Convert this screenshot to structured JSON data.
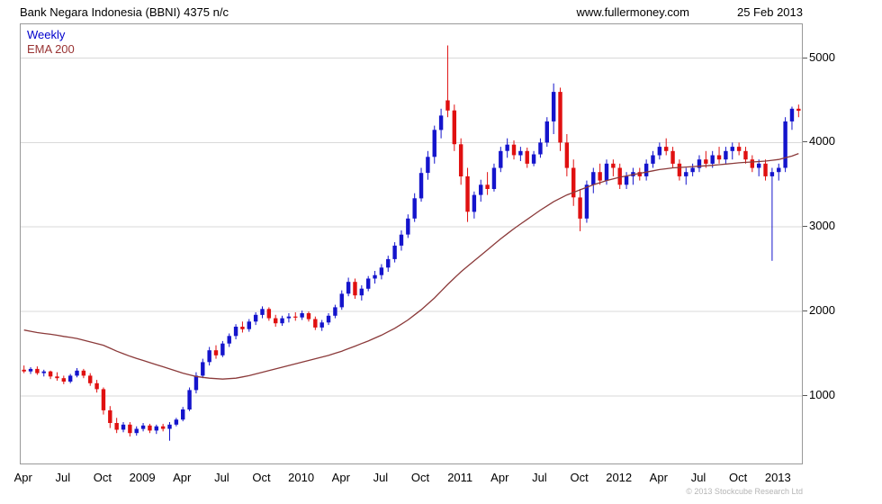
{
  "header": {
    "title": "Bank Negara Indonesia (BBNI) 4375 n/c",
    "site": "www.fullermoney.com",
    "date": "25 Feb 2013"
  },
  "legend": {
    "series1": "Weekly",
    "series2": "EMA 200"
  },
  "footer": {
    "copyright": "© 2013 Stockcube Research Ltd"
  },
  "colors": {
    "up": "#1414cc",
    "down": "#e01010",
    "ema_line": "#8b3a3a",
    "grid": "#d9d9d9",
    "legend_weekly": "#0000cc",
    "legend_ema": "#993333",
    "axis_text": "#000000",
    "tick": "#555555"
  },
  "chart_data": {
    "type": "candlestick",
    "subtype": "weekly-ohlc-approximated",
    "title": "Bank Negara Indonesia (BBNI)",
    "frequency": "Weekly",
    "overlay": "EMA 200",
    "last_price": 4375,
    "change": "n/c",
    "date_range": "Apr 2008 - Feb 2013",
    "ylim": [
      200,
      5400
    ],
    "yticks": [
      1000,
      2000,
      3000,
      4000,
      5000
    ],
    "grid": "horizontal-only",
    "legend_position": "top-left",
    "x_axis_labels": [
      {
        "label": "Apr",
        "index": 0
      },
      {
        "label": "Jul",
        "index": 6
      },
      {
        "label": "Oct",
        "index": 12
      },
      {
        "label": "2009",
        "index": 18
      },
      {
        "label": "Apr",
        "index": 24
      },
      {
        "label": "Jul",
        "index": 30
      },
      {
        "label": "Oct",
        "index": 36
      },
      {
        "label": "2010",
        "index": 42
      },
      {
        "label": "Apr",
        "index": 48
      },
      {
        "label": "Jul",
        "index": 54
      },
      {
        "label": "Oct",
        "index": 60
      },
      {
        "label": "2011",
        "index": 66
      },
      {
        "label": "Apr",
        "index": 72
      },
      {
        "label": "Jul",
        "index": 78
      },
      {
        "label": "Oct",
        "index": 84
      },
      {
        "label": "2012",
        "index": 90
      },
      {
        "label": "Apr",
        "index": 96
      },
      {
        "label": "Jul",
        "index": 102
      },
      {
        "label": "Oct",
        "index": 108
      },
      {
        "label": "2013",
        "index": 114
      }
    ],
    "candles": [
      [
        1310,
        1360,
        1270,
        1290
      ],
      [
        1290,
        1340,
        1260,
        1320
      ],
      [
        1320,
        1350,
        1250,
        1270
      ],
      [
        1270,
        1310,
        1230,
        1290
      ],
      [
        1290,
        1300,
        1200,
        1230
      ],
      [
        1230,
        1280,
        1180,
        1210
      ],
      [
        1210,
        1240,
        1140,
        1170
      ],
      [
        1170,
        1260,
        1150,
        1240
      ],
      [
        1240,
        1330,
        1220,
        1300
      ],
      [
        1300,
        1320,
        1210,
        1240
      ],
      [
        1240,
        1270,
        1120,
        1150
      ],
      [
        1150,
        1190,
        1040,
        1080
      ],
      [
        1080,
        1100,
        780,
        830
      ],
      [
        830,
        880,
        620,
        680
      ],
      [
        680,
        740,
        560,
        600
      ],
      [
        600,
        690,
        570,
        660
      ],
      [
        660,
        690,
        520,
        560
      ],
      [
        560,
        640,
        530,
        610
      ],
      [
        610,
        680,
        580,
        650
      ],
      [
        650,
        670,
        560,
        590
      ],
      [
        590,
        660,
        550,
        640
      ],
      [
        640,
        670,
        580,
        610
      ],
      [
        610,
        690,
        470,
        660
      ],
      [
        660,
        740,
        640,
        720
      ],
      [
        720,
        870,
        700,
        840
      ],
      [
        840,
        1100,
        820,
        1070
      ],
      [
        1070,
        1280,
        1030,
        1240
      ],
      [
        1240,
        1440,
        1210,
        1400
      ],
      [
        1400,
        1580,
        1360,
        1540
      ],
      [
        1540,
        1600,
        1440,
        1480
      ],
      [
        1480,
        1650,
        1460,
        1620
      ],
      [
        1620,
        1740,
        1580,
        1710
      ],
      [
        1710,
        1850,
        1670,
        1820
      ],
      [
        1820,
        1880,
        1750,
        1790
      ],
      [
        1790,
        1910,
        1760,
        1880
      ],
      [
        1880,
        1990,
        1840,
        1960
      ],
      [
        1960,
        2060,
        1920,
        2030
      ],
      [
        2030,
        2050,
        1890,
        1920
      ],
      [
        1920,
        1960,
        1820,
        1860
      ],
      [
        1860,
        1950,
        1830,
        1920
      ],
      [
        1920,
        1980,
        1870,
        1940
      ],
      [
        1940,
        1990,
        1890,
        1930
      ],
      [
        1930,
        2010,
        1900,
        1980
      ],
      [
        1980,
        2000,
        1880,
        1910
      ],
      [
        1910,
        1940,
        1780,
        1810
      ],
      [
        1810,
        1900,
        1770,
        1870
      ],
      [
        1870,
        1980,
        1840,
        1950
      ],
      [
        1950,
        2080,
        1920,
        2050
      ],
      [
        2050,
        2250,
        2020,
        2210
      ],
      [
        2210,
        2400,
        2180,
        2350
      ],
      [
        2350,
        2390,
        2150,
        2190
      ],
      [
        2190,
        2310,
        2130,
        2270
      ],
      [
        2270,
        2420,
        2240,
        2390
      ],
      [
        2390,
        2480,
        2330,
        2430
      ],
      [
        2430,
        2560,
        2380,
        2520
      ],
      [
        2520,
        2660,
        2470,
        2620
      ],
      [
        2620,
        2820,
        2580,
        2780
      ],
      [
        2780,
        2960,
        2720,
        2910
      ],
      [
        2910,
        3150,
        2870,
        3100
      ],
      [
        3100,
        3400,
        3060,
        3340
      ],
      [
        3340,
        3700,
        3300,
        3640
      ],
      [
        3640,
        3900,
        3560,
        3830
      ],
      [
        3830,
        4200,
        3750,
        4150
      ],
      [
        4150,
        4400,
        4050,
        4320
      ],
      [
        4500,
        5150,
        4300,
        4380
      ],
      [
        4380,
        4450,
        3900,
        3980
      ],
      [
        3980,
        4050,
        3500,
        3600
      ],
      [
        3600,
        3700,
        3060,
        3180
      ],
      [
        3180,
        3420,
        3100,
        3380
      ],
      [
        3380,
        3560,
        3300,
        3500
      ],
      [
        3500,
        3650,
        3380,
        3450
      ],
      [
        3450,
        3750,
        3420,
        3700
      ],
      [
        3700,
        3950,
        3650,
        3900
      ],
      [
        3900,
        4050,
        3820,
        3975
      ],
      [
        3975,
        4025,
        3800,
        3850
      ],
      [
        3850,
        3950,
        3780,
        3900
      ],
      [
        3900,
        3940,
        3700,
        3750
      ],
      [
        3750,
        3900,
        3720,
        3860
      ],
      [
        3860,
        4050,
        3820,
        4000
      ],
      [
        4000,
        4300,
        3950,
        4250
      ],
      [
        4250,
        4700,
        4100,
        4600
      ],
      [
        4600,
        4650,
        3900,
        4000
      ],
      [
        4000,
        4100,
        3600,
        3700
      ],
      [
        3700,
        3800,
        3250,
        3350
      ],
      [
        3350,
        3450,
        2950,
        3100
      ],
      [
        3100,
        3550,
        3050,
        3500
      ],
      [
        3500,
        3700,
        3400,
        3650
      ],
      [
        3650,
        3750,
        3500,
        3550
      ],
      [
        3550,
        3800,
        3500,
        3750
      ],
      [
        3750,
        3800,
        3600,
        3700
      ],
      [
        3700,
        3750,
        3450,
        3500
      ],
      [
        3500,
        3650,
        3450,
        3600
      ],
      [
        3600,
        3700,
        3500,
        3650
      ],
      [
        3650,
        3700,
        3550,
        3600
      ],
      [
        3600,
        3800,
        3550,
        3750
      ],
      [
        3750,
        3900,
        3700,
        3850
      ],
      [
        3850,
        4000,
        3800,
        3950
      ],
      [
        3950,
        4050,
        3850,
        3900
      ],
      [
        3900,
        3950,
        3700,
        3750
      ],
      [
        3750,
        3800,
        3550,
        3600
      ],
      [
        3600,
        3700,
        3500,
        3650
      ],
      [
        3650,
        3750,
        3600,
        3700
      ],
      [
        3700,
        3850,
        3650,
        3800
      ],
      [
        3800,
        3900,
        3700,
        3750
      ],
      [
        3750,
        3900,
        3700,
        3850
      ],
      [
        3850,
        3950,
        3750,
        3800
      ],
      [
        3800,
        3950,
        3750,
        3900
      ],
      [
        3900,
        4000,
        3800,
        3950
      ],
      [
        3950,
        4000,
        3850,
        3900
      ],
      [
        3900,
        3950,
        3750,
        3800
      ],
      [
        3800,
        3850,
        3650,
        3700
      ],
      [
        3700,
        3800,
        3600,
        3750
      ],
      [
        3750,
        3800,
        3550,
        3600
      ],
      [
        3600,
        3700,
        2600,
        3650
      ],
      [
        3650,
        3750,
        3550,
        3700
      ],
      [
        3700,
        4300,
        3650,
        4250
      ],
      [
        4250,
        4425,
        4150,
        4400
      ],
      [
        4400,
        4450,
        4300,
        4375
      ]
    ],
    "ema": [
      1780,
      1765,
      1750,
      1740,
      1730,
      1718,
      1705,
      1693,
      1680,
      1660,
      1640,
      1620,
      1600,
      1565,
      1530,
      1500,
      1470,
      1445,
      1420,
      1395,
      1370,
      1345,
      1320,
      1295,
      1270,
      1250,
      1230,
      1220,
      1210,
      1205,
      1200,
      1205,
      1210,
      1225,
      1240,
      1260,
      1280,
      1300,
      1320,
      1340,
      1360,
      1380,
      1400,
      1420,
      1440,
      1460,
      1480,
      1505,
      1530,
      1560,
      1590,
      1620,
      1650,
      1685,
      1720,
      1760,
      1800,
      1850,
      1900,
      1960,
      2020,
      2090,
      2160,
      2240,
      2320,
      2395,
      2470,
      2535,
      2600,
      2665,
      2730,
      2795,
      2860,
      2920,
      2980,
      3035,
      3090,
      3145,
      3200,
      3250,
      3300,
      3340,
      3380,
      3410,
      3440,
      3470,
      3500,
      3525,
      3550,
      3570,
      3590,
      3605,
      3620,
      3635,
      3650,
      3665,
      3680,
      3690,
      3700,
      3705,
      3710,
      3715,
      3720,
      3725,
      3730,
      3738,
      3745,
      3753,
      3760,
      3765,
      3770,
      3775,
      3780,
      3790,
      3800,
      3820,
      3840,
      3870
    ]
  }
}
